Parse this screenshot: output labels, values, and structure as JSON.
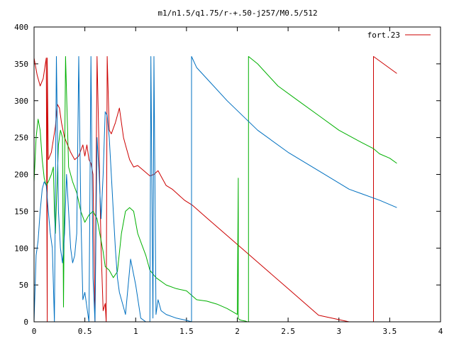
{
  "chart_data": {
    "type": "line",
    "title": "m1/n1.5/q1.75/r-+.50-j257/M0.5/512",
    "xlabel": "",
    "ylabel": "",
    "xlim": [
      0,
      4
    ],
    "ylim": [
      0,
      400
    ],
    "x_ticks": [
      "0",
      "0.5",
      "1",
      "1.5",
      "2",
      "2.5",
      "3",
      "3.5",
      "4"
    ],
    "y_ticks": [
      "0",
      "50",
      "100",
      "150",
      "200",
      "250",
      "300",
      "350",
      "400"
    ],
    "grid": false,
    "legend": {
      "placement": "top-right",
      "entries": [
        {
          "label": "fort.23",
          "color": "#cc0000"
        }
      ]
    },
    "series": [
      {
        "name": "fort.23",
        "color": "#cc0000",
        "x": [
          0.0,
          0.03,
          0.06,
          0.09,
          0.12,
          0.13,
          0.13,
          0.14,
          0.17,
          0.21,
          0.23,
          0.25,
          0.27,
          0.3,
          0.33,
          0.36,
          0.4,
          0.44,
          0.48,
          0.5,
          0.52,
          0.54,
          0.56,
          0.58,
          0.6,
          0.62,
          0.64,
          0.66,
          0.68,
          0.7,
          0.71,
          0.72,
          0.74,
          0.76,
          0.8,
          0.84,
          0.88,
          0.9,
          0.94,
          0.98,
          1.02,
          1.08,
          1.14,
          1.18,
          1.22,
          1.26,
          1.3,
          1.36,
          1.4,
          1.48,
          1.56,
          1.7,
          1.9,
          2.2,
          2.5,
          2.8,
          3.1,
          3.34,
          3.34,
          3.57
        ],
        "y": [
          358,
          335,
          320,
          330,
          358,
          0,
          358,
          220,
          230,
          265,
          295,
          290,
          270,
          250,
          240,
          230,
          220,
          225,
          240,
          225,
          240,
          220,
          215,
          200,
          0,
          360,
          230,
          100,
          15,
          25,
          0,
          360,
          260,
          255,
          270,
          290,
          250,
          240,
          220,
          210,
          212,
          205,
          198,
          200,
          205,
          195,
          185,
          180,
          175,
          165,
          158,
          141,
          117,
          81,
          45,
          9,
          0,
          0,
          360,
          337
        ]
      },
      {
        "name": "",
        "color": "#00b000",
        "x": [
          0.0,
          0.02,
          0.04,
          0.06,
          0.08,
          0.1,
          0.12,
          0.14,
          0.17,
          0.19,
          0.2,
          0.21,
          0.22,
          0.24,
          0.26,
          0.28,
          0.29,
          0.3,
          0.31,
          0.34,
          0.38,
          0.42,
          0.46,
          0.5,
          0.54,
          0.58,
          0.62,
          0.64,
          0.66,
          0.68,
          0.7,
          0.74,
          0.78,
          0.82,
          0.86,
          0.9,
          0.94,
          0.98,
          1.02,
          1.06,
          1.1,
          1.14,
          1.2,
          1.3,
          1.4,
          1.5,
          1.6,
          1.7,
          1.8,
          1.9,
          2.0,
          2.01,
          2.01,
          2.02,
          2.04,
          2.08,
          2.1,
          2.11,
          2.11,
          2.2,
          2.4,
          2.6,
          2.8,
          3.0,
          3.2,
          3.34,
          3.4,
          3.5,
          3.57
        ],
        "y": [
          190,
          250,
          275,
          260,
          220,
          195,
          185,
          190,
          200,
          210,
          150,
          120,
          160,
          240,
          260,
          250,
          20,
          200,
          360,
          210,
          190,
          175,
          150,
          135,
          145,
          150,
          140,
          125,
          110,
          95,
          75,
          70,
          60,
          68,
          120,
          150,
          155,
          150,
          120,
          105,
          90,
          70,
          60,
          50,
          45,
          42,
          30,
          28,
          24,
          18,
          10,
          195,
          5,
          3,
          2,
          1,
          0,
          0,
          360,
          350,
          320,
          300,
          280,
          260,
          245,
          235,
          228,
          222,
          215
        ]
      },
      {
        "name": "",
        "color": "#0070c0",
        "x": [
          0.0,
          0.02,
          0.04,
          0.06,
          0.08,
          0.1,
          0.12,
          0.14,
          0.16,
          0.18,
          0.2,
          0.22,
          0.24,
          0.26,
          0.28,
          0.3,
          0.32,
          0.34,
          0.36,
          0.38,
          0.4,
          0.42,
          0.44,
          0.46,
          0.48,
          0.5,
          0.52,
          0.54,
          0.56,
          0.58,
          0.6,
          0.62,
          0.64,
          0.66,
          0.68,
          0.7,
          0.72,
          0.74,
          0.76,
          0.78,
          0.8,
          0.82,
          0.84,
          0.86,
          0.88,
          0.9,
          0.95,
          1.0,
          1.05,
          1.1,
          1.14,
          1.15,
          1.17,
          1.18,
          1.2,
          1.22,
          1.25,
          1.3,
          1.4,
          1.5,
          1.55,
          1.55,
          1.6,
          1.7,
          1.9,
          2.2,
          2.5,
          2.8,
          3.1,
          3.4,
          3.57
        ],
        "y": [
          0,
          90,
          110,
          150,
          180,
          190,
          185,
          150,
          120,
          100,
          0,
          360,
          150,
          100,
          80,
          120,
          200,
          150,
          100,
          80,
          90,
          120,
          360,
          150,
          30,
          40,
          20,
          0,
          360,
          60,
          0,
          250,
          200,
          140,
          200,
          285,
          280,
          250,
          200,
          150,
          100,
          60,
          40,
          30,
          20,
          10,
          85,
          50,
          5,
          0,
          0,
          360,
          5,
          360,
          10,
          30,
          15,
          10,
          5,
          2,
          0,
          360,
          345,
          330,
          300,
          260,
          230,
          205,
          180,
          165,
          155
        ]
      }
    ]
  }
}
